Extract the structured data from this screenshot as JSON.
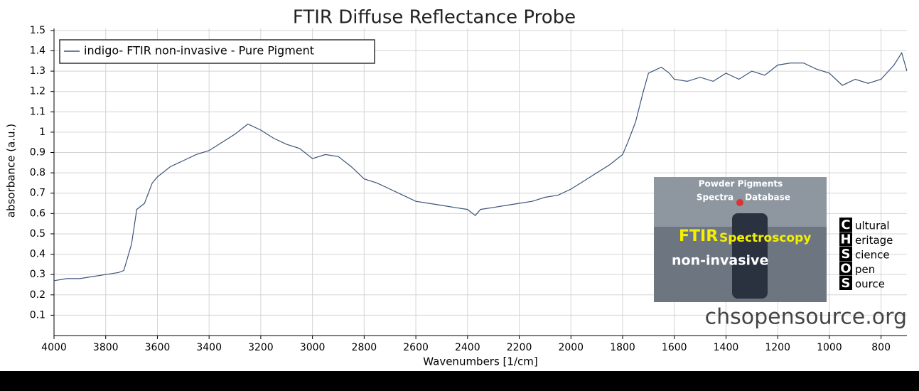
{
  "chart_data": {
    "type": "line",
    "title": "FTIR Diffuse Reflectance Probe",
    "x_label": "Wavenumbers [1/cm]",
    "y_label": "absorbance (a.u.)",
    "x": [
      4000,
      3950,
      3900,
      3850,
      3800,
      3750,
      3730,
      3700,
      3680,
      3650,
      3620,
      3600,
      3550,
      3500,
      3450,
      3400,
      3350,
      3300,
      3250,
      3200,
      3150,
      3100,
      3050,
      3000,
      2950,
      2900,
      2850,
      2800,
      2750,
      2700,
      2650,
      2600,
      2550,
      2500,
      2450,
      2400,
      2370,
      2350,
      2300,
      2250,
      2200,
      2150,
      2100,
      2050,
      2000,
      1950,
      1900,
      1850,
      1800,
      1780,
      1750,
      1720,
      1700,
      1650,
      1620,
      1600,
      1550,
      1500,
      1450,
      1400,
      1350,
      1300,
      1250,
      1200,
      1150,
      1100,
      1050,
      1000,
      950,
      900,
      850,
      800,
      750,
      720,
      700
    ],
    "series": [
      {
        "name": "indigo- FTIR non-invasive - Pure Pigment",
        "color": "#3b5479",
        "values": [
          0.27,
          0.28,
          0.28,
          0.29,
          0.3,
          0.31,
          0.32,
          0.45,
          0.62,
          0.65,
          0.75,
          0.78,
          0.83,
          0.86,
          0.89,
          0.91,
          0.95,
          0.99,
          1.04,
          1.01,
          0.97,
          0.94,
          0.92,
          0.87,
          0.89,
          0.88,
          0.83,
          0.77,
          0.75,
          0.72,
          0.69,
          0.66,
          0.65,
          0.64,
          0.63,
          0.62,
          0.59,
          0.62,
          0.63,
          0.64,
          0.65,
          0.66,
          0.68,
          0.69,
          0.72,
          0.76,
          0.8,
          0.84,
          0.89,
          0.95,
          1.05,
          1.2,
          1.29,
          1.32,
          1.29,
          1.26,
          1.25,
          1.27,
          1.25,
          1.29,
          1.26,
          1.3,
          1.28,
          1.33,
          1.34,
          1.34,
          1.31,
          1.29,
          1.23,
          1.26,
          1.24,
          1.26,
          1.33,
          1.39,
          1.3
        ]
      }
    ],
    "xlim": [
      4000,
      700
    ],
    "ylim": [
      0,
      1.51
    ],
    "xticks": [
      4000,
      3800,
      3600,
      3400,
      3200,
      3000,
      2800,
      2600,
      2400,
      2200,
      2000,
      1800,
      1600,
      1400,
      1200,
      1000,
      800
    ],
    "yticks": [
      0.1,
      0.2,
      0.3,
      0.4,
      0.5,
      0.6,
      0.7,
      0.8,
      0.9,
      1,
      1.1,
      1.2,
      1.3,
      1.4,
      1.5
    ],
    "grid": true,
    "legend": "top-left",
    "logo_texts": [
      "Powder Pigments",
      "Spectra",
      "Database",
      "FTIR",
      "Spectroscopy",
      "non-invasive"
    ],
    "chsos": [
      [
        "C",
        "ultural"
      ],
      [
        "H",
        "eritage"
      ],
      [
        "S",
        "cience"
      ],
      [
        "O",
        "pen"
      ],
      [
        "S",
        "ource"
      ]
    ],
    "website": "chsopensource.org"
  }
}
